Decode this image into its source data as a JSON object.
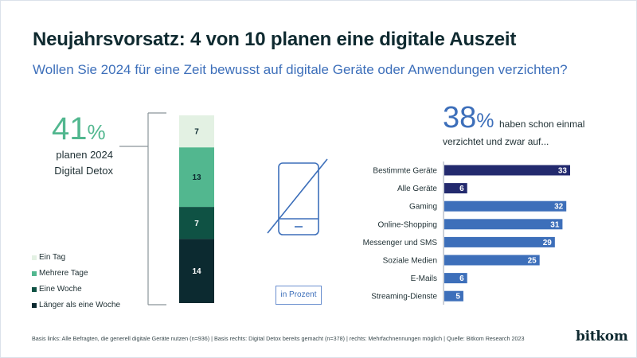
{
  "header": {
    "title": "Neujahrsvorsatz: 4 von 10 planen eine digitale Auszeit",
    "subtitle": "Wollen Sie 2024 für eine Zeit bewusst auf digitale Geräte oder Anwendungen verzichten?"
  },
  "left": {
    "big_number": "41",
    "big_unit": "%",
    "caption_line1": "planen 2024",
    "caption_line2": "Digital Detox"
  },
  "right": {
    "big_number": "38",
    "big_unit": "%",
    "caption_line1": "haben schon einmal",
    "caption_line2": "verzichtet und zwar auf..."
  },
  "unit_label": "in Prozent",
  "icon": "phone-crossed-out-icon",
  "footer": "Basis links: Alle Befragten, die generell digitale Geräte nutzen (n=936) | Basis rechts: Digital Detox bereits gemacht (n=378) | rechts: Mehrfachnennungen möglich | Quelle: Bitkom Research 2023",
  "logo": "bitkom",
  "colors": {
    "ein_tag": "#e3f1e3",
    "mehrere_tage": "#52b78f",
    "eine_woche": "#0f5244",
    "laenger": "#0c2a30",
    "dark_blue": "#232a6e",
    "blue": "#3d6fba"
  },
  "chart_data": [
    {
      "type": "bar",
      "orientation": "stacked-vertical",
      "title": "Wollen Sie 2024 für eine Zeit bewusst auf digitale Geräte oder Anwendungen verzichten?",
      "unit": "Prozent",
      "total": 41,
      "series": [
        {
          "name": "Ein Tag",
          "value": 7,
          "color": "#e3f1e3",
          "label_color": "#0c2a30"
        },
        {
          "name": "Mehrere Tage",
          "value": 13,
          "color": "#52b78f",
          "label_color": "#0c2a30"
        },
        {
          "name": "Eine Woche",
          "value": 7,
          "color": "#0f5244",
          "label_color": "#ffffff"
        },
        {
          "name": "Länger als eine Woche",
          "value": 14,
          "color": "#0c2a30",
          "label_color": "#ffffff"
        }
      ],
      "legend": "bottom-left"
    },
    {
      "type": "bar",
      "orientation": "horizontal",
      "title": "38% haben schon einmal verzichtet und zwar auf...",
      "unit": "Prozent",
      "categories": [
        "Bestimmte Geräte",
        "Alle Geräte",
        "Gaming",
        "Online-Shopping",
        "Messenger und SMS",
        "Soziale Medien",
        "E-Mails",
        "Streaming-Dienste"
      ],
      "values": [
        33,
        6,
        32,
        31,
        29,
        25,
        6,
        5
      ],
      "colors": [
        "#232a6e",
        "#232a6e",
        "#3d6fba",
        "#3d6fba",
        "#3d6fba",
        "#3d6fba",
        "#3d6fba",
        "#3d6fba"
      ],
      "xlim": [
        0,
        33
      ]
    }
  ]
}
